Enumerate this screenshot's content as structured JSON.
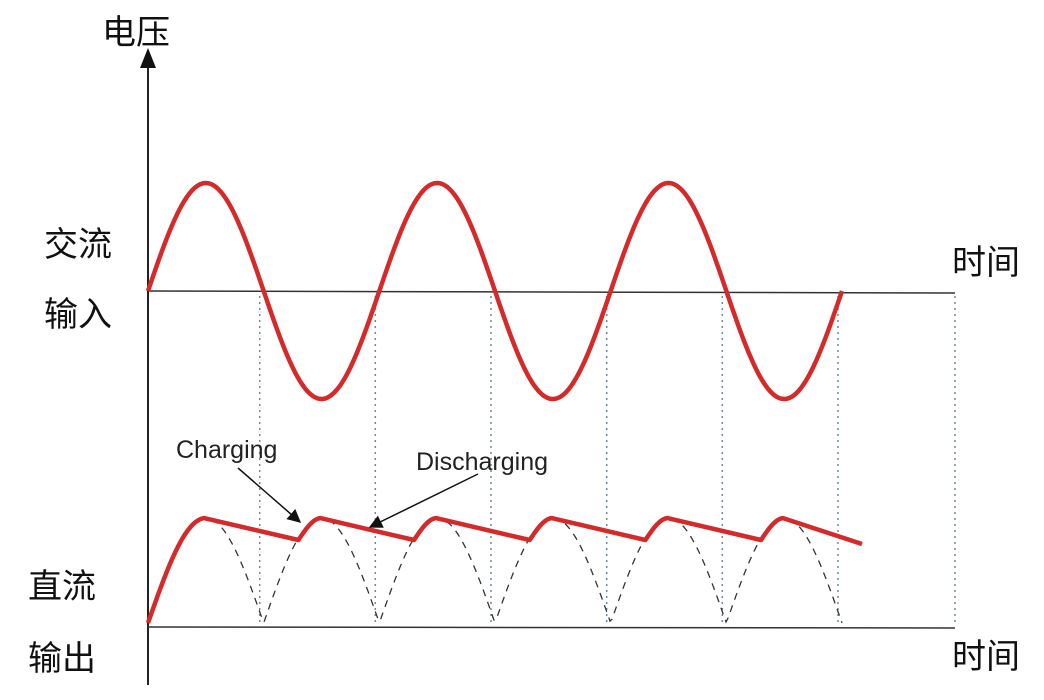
{
  "labels": {
    "voltage": "电压",
    "ac_line1": "交流",
    "ac_line2": "输入",
    "dc_line1": "直流",
    "dc_line2": "输出",
    "time_top": "时间",
    "time_bottom": "时间",
    "charging": "Charging",
    "discharging": "Discharging"
  },
  "colors": {
    "waveform": "#d42a2a",
    "axis": "#222222",
    "guide": "#6b8a9c",
    "dashed": "#333333"
  }
}
